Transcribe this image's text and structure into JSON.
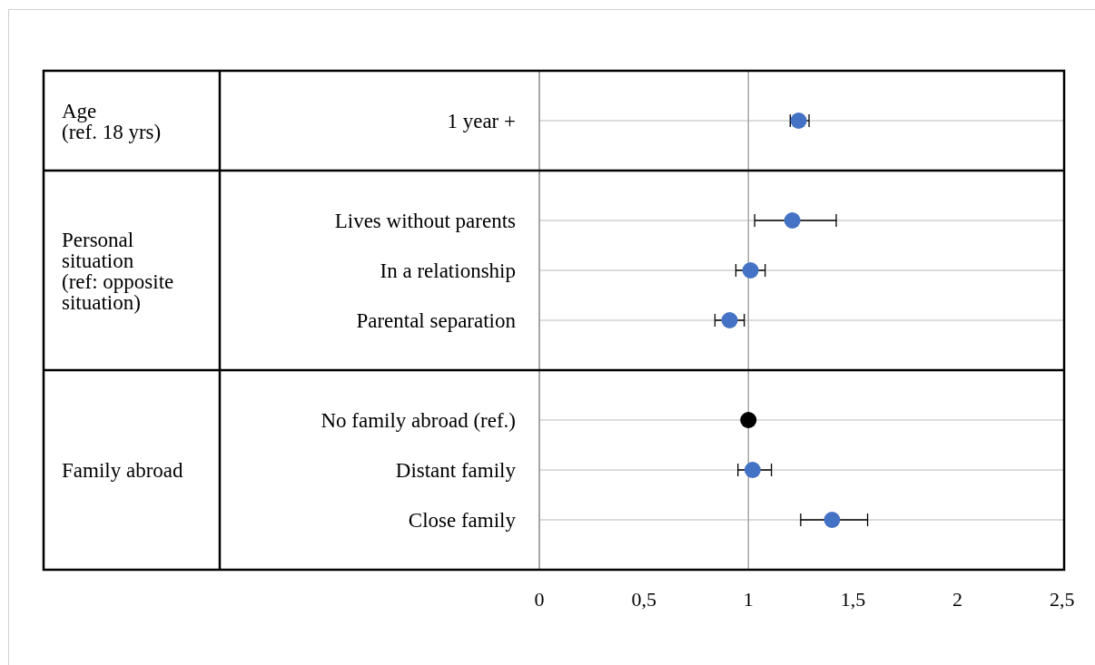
{
  "chart_data": {
    "type": "scatter",
    "categories": [
      "1 year +",
      null,
      "Lives without parents",
      "In a relationship",
      "Parental separation",
      null,
      "No family abroad (ref.)",
      "Distant family",
      "Close family"
    ],
    "values": [
      1.24,
      null,
      1.21,
      1.01,
      0.91,
      null,
      1,
      1.02,
      1.4
    ],
    "colors": [
      "#4472c4",
      null,
      "#4472c4",
      "#4472c4",
      "#4472c4",
      null,
      "#000000",
      "#4472c4",
      "#4472c4"
    ],
    "errors": [
      [
        1.2,
        1.29
      ],
      null,
      [
        1.03,
        1.42
      ],
      [
        0.94,
        1.08
      ],
      [
        0.84,
        0.98
      ],
      null,
      null,
      [
        0.95,
        1.11
      ],
      [
        1.25,
        1.57
      ]
    ],
    "orientation": "horizontal",
    "xlim": [
      0,
      2.5
    ],
    "xticks": [
      0,
      {
        "value": 0.5,
        "label": "0,5"
      },
      1,
      {
        "value": 1.5,
        "label": "1,5"
      },
      2,
      {
        "value": 2.5,
        "label": "2,5"
      }
    ],
    "ref_lines": [
      {
        "axis": "x",
        "value": 1,
        "label": null,
        "color": "#a6a6a6"
      }
    ],
    "grid": "y",
    "marker": "circle",
    "annotations": [
      "Age\n(ref. 18 yrs)",
      "Personal\nsituation\n(ref: opposite\nsituation)",
      "Family abroad"
    ]
  }
}
